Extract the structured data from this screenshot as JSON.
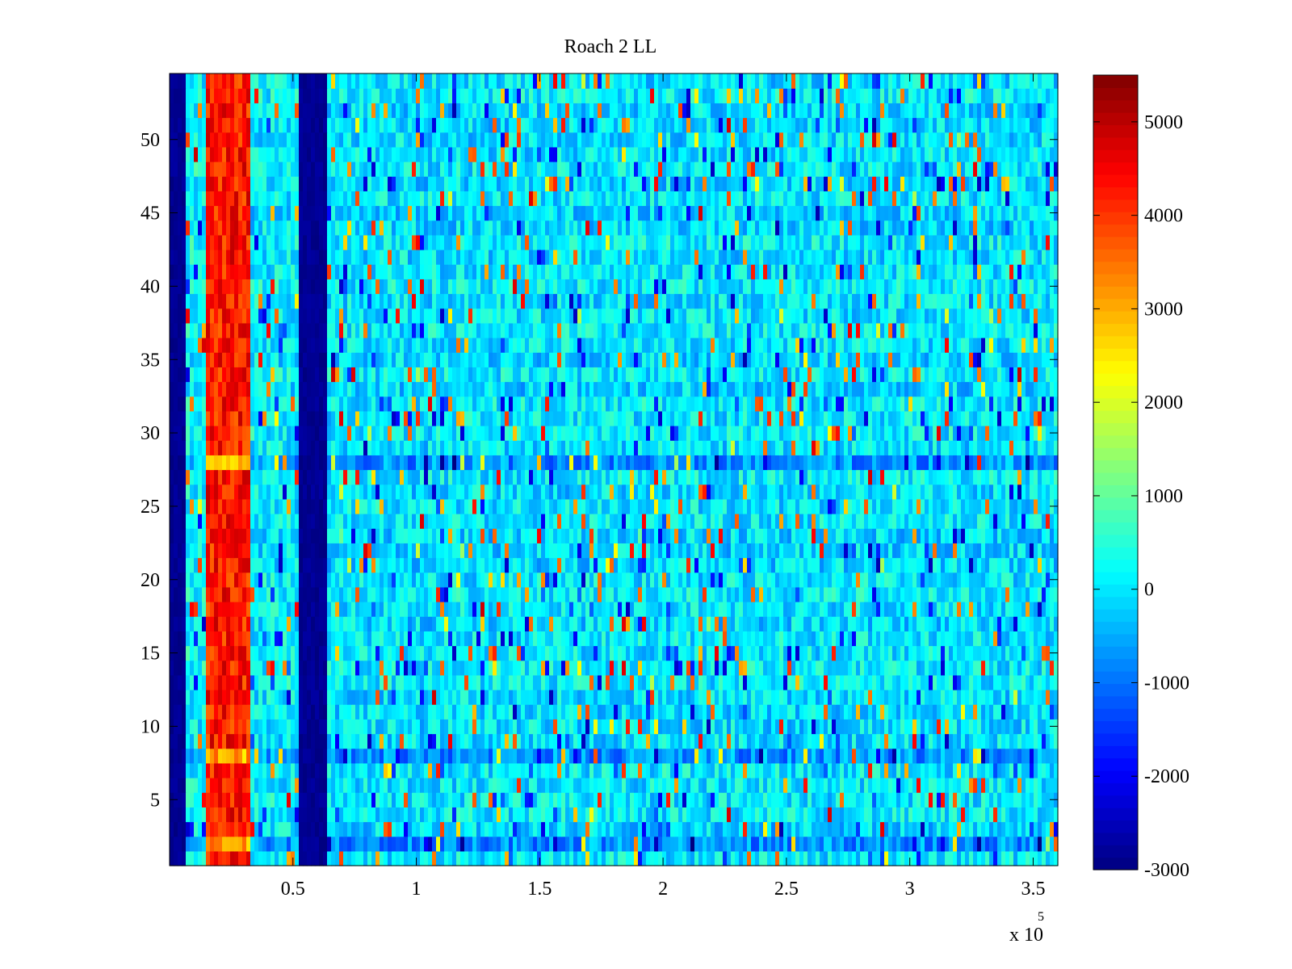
{
  "chart_data": {
    "type": "heatmap",
    "title": "Roach 2 LL",
    "xlabel": "",
    "ylabel": "",
    "x_range": [
      0,
      360000
    ],
    "y_range": [
      0.5,
      54.5
    ],
    "x_ticks": [
      50000,
      100000,
      150000,
      200000,
      250000,
      300000,
      350000
    ],
    "x_tick_labels": [
      "0.5",
      "1",
      "1.5",
      "2",
      "2.5",
      "3",
      "3.5"
    ],
    "x_exponent_label": "x 10",
    "x_exponent_power": "5",
    "y_ticks": [
      5,
      10,
      15,
      20,
      25,
      30,
      35,
      40,
      45,
      50
    ],
    "y_tick_labels": [
      "5",
      "10",
      "15",
      "20",
      "25",
      "30",
      "35",
      "40",
      "45",
      "50"
    ],
    "colorbar": {
      "colormap": "jet",
      "range": [
        -3000,
        5500
      ],
      "ticks": [
        -3000,
        -2000,
        -1000,
        0,
        1000,
        2000,
        3000,
        4000,
        5000
      ],
      "tick_labels": [
        "-3000",
        "-2000",
        "-1000",
        "0",
        "1000",
        "2000",
        "3000",
        "4000",
        "5000"
      ]
    },
    "rows": 54,
    "column_bands": [
      {
        "x_start": 0,
        "x_end": 7000,
        "value": -3000,
        "note": "left edge, very low"
      },
      {
        "x_start": 7000,
        "x_end": 15000,
        "value": 200
      },
      {
        "x_start": 15000,
        "x_end": 32000,
        "value": 4000,
        "note": "high band"
      },
      {
        "x_start": 32000,
        "x_end": 52000,
        "value": 100
      },
      {
        "x_start": 52000,
        "x_end": 63000,
        "value": -3000,
        "note": "low band"
      },
      {
        "x_start": 63000,
        "x_end": 360000,
        "value": 0,
        "note": "noisy background"
      }
    ],
    "low_rows": [
      2,
      8,
      28
    ],
    "grid": false,
    "legend": "none"
  }
}
